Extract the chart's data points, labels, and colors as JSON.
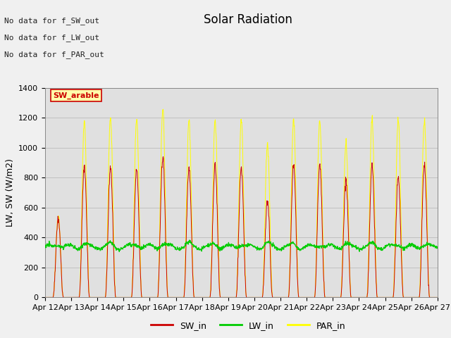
{
  "title": "Solar Radiation",
  "ylabel": "LW, SW (W/m2)",
  "n_days": 15,
  "ylim": [
    0,
    1400
  ],
  "yticks": [
    0,
    200,
    400,
    600,
    800,
    1000,
    1200,
    1400
  ],
  "x_tick_labels": [
    "Apr 12",
    "Apr 13",
    "Apr 14",
    "Apr 15",
    "Apr 16",
    "Apr 17",
    "Apr 18",
    "Apr 19",
    "Apr 20",
    "Apr 21",
    "Apr 22",
    "Apr 23",
    "Apr 24",
    "Apr 25",
    "Apr 26",
    "Apr 27"
  ],
  "SW_color": "#cc0000",
  "LW_color": "#00cc00",
  "PAR_color": "#ffff00",
  "fig_facecolor": "#f0f0f0",
  "axes_facecolor": "#e0e0e0",
  "annotation_texts": [
    "No data for f_SW_out",
    "No data for f_LW_out",
    "No data for f_PAR_out"
  ],
  "legend_label_box": "SW_arable",
  "legend_entries": [
    "SW_in",
    "LW_in",
    "PAR_in"
  ],
  "title_fontsize": 12,
  "ylabel_fontsize": 9,
  "tick_fontsize": 8,
  "annotation_fontsize": 8,
  "sw_peaks": [
    530,
    880,
    870,
    860,
    940,
    870,
    880,
    870,
    640,
    880,
    880,
    780,
    880,
    800,
    880
  ],
  "par_peaks": [
    530,
    1175,
    1195,
    1200,
    1260,
    1185,
    1185,
    1185,
    1025,
    1185,
    1185,
    1030,
    1195,
    1185,
    1185
  ]
}
